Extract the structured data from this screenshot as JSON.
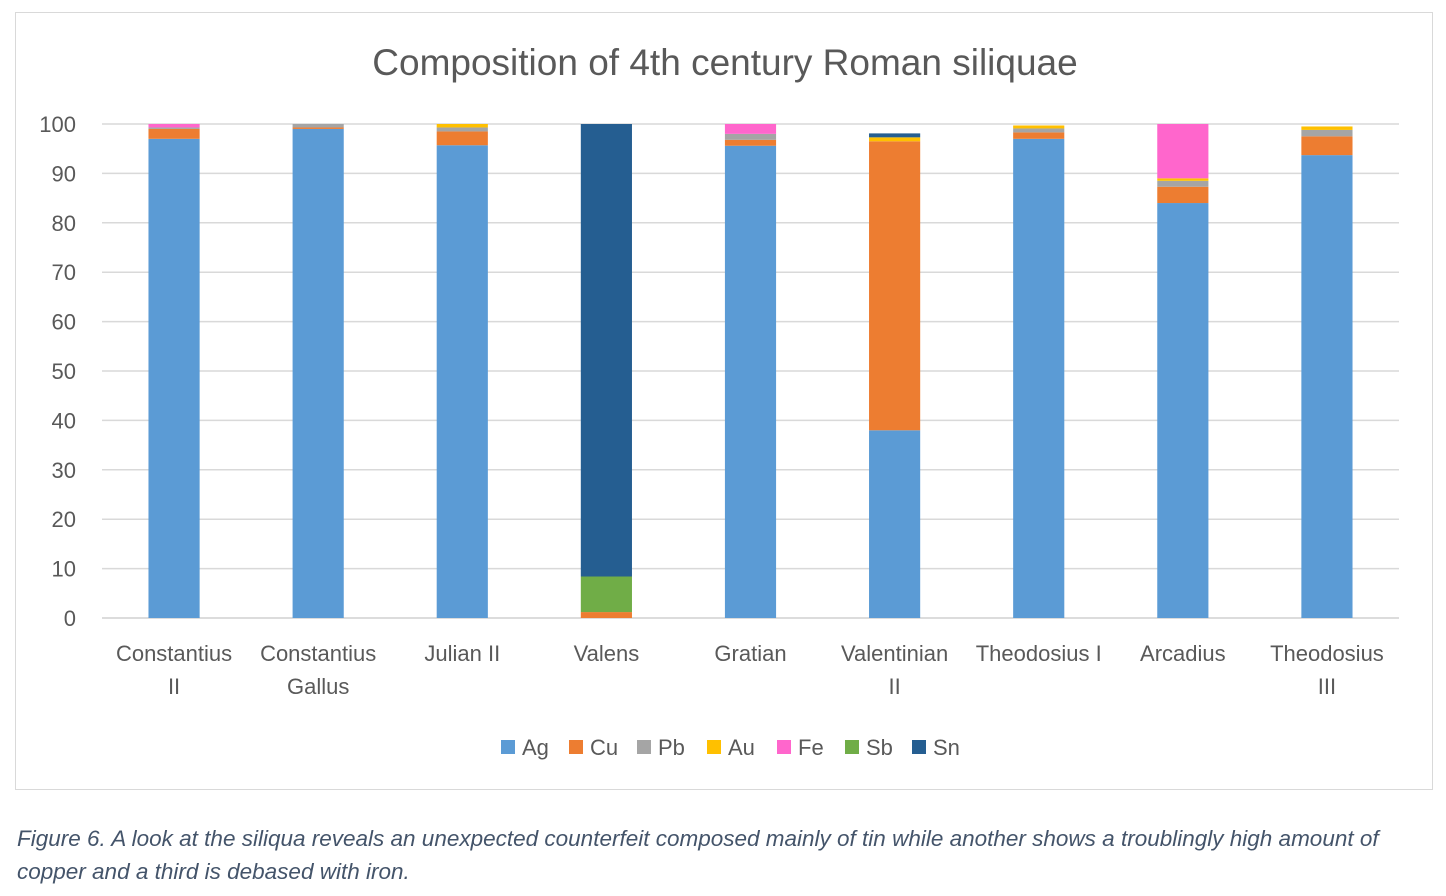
{
  "chart_data": {
    "type": "bar",
    "stacked": true,
    "title": "Composition of 4th century Roman siliquae",
    "xlabel": "",
    "ylabel": "",
    "ylim": [
      0,
      100
    ],
    "yticks": [
      0,
      10,
      20,
      30,
      40,
      50,
      60,
      70,
      80,
      90,
      100
    ],
    "grid": true,
    "legend_position": "bottom",
    "categories": [
      [
        "Constantius",
        "II"
      ],
      [
        "Constantius",
        "Gallus"
      ],
      [
        "Julian II"
      ],
      [
        "Valens"
      ],
      [
        "Gratian"
      ],
      [
        "Valentinian",
        "II"
      ],
      [
        "Theodosius I"
      ],
      [
        "Arcadius"
      ],
      [
        "Theodosius",
        "III"
      ]
    ],
    "series": [
      {
        "name": "Ag",
        "color": "#5b9bd5",
        "values": [
          97,
          99,
          95.7,
          0,
          95.6,
          38,
          97,
          84,
          93.7
        ]
      },
      {
        "name": "Cu",
        "color": "#ed7d31",
        "values": [
          2,
          0.3,
          2.8,
          1.2,
          1.2,
          58.5,
          1.3,
          3.3,
          3.8
        ]
      },
      {
        "name": "Pb",
        "color": "#a5a5a5",
        "values": [
          0.3,
          0.7,
          0.8,
          0,
          1.2,
          0,
          0.8,
          1.2,
          1.3
        ]
      },
      {
        "name": "Au",
        "color": "#ffc000",
        "values": [
          0,
          0,
          0.7,
          0,
          0,
          0.8,
          0.6,
          0.5,
          0.7
        ]
      },
      {
        "name": "Fe",
        "color": "#ff66cc",
        "values": [
          0.7,
          0,
          0,
          0,
          2,
          0,
          0,
          11,
          0
        ]
      },
      {
        "name": "Sb",
        "color": "#70ad47",
        "values": [
          0,
          0,
          0,
          7.2,
          0,
          0,
          0,
          0,
          0
        ]
      },
      {
        "name": "Sn",
        "color": "#255e91",
        "values": [
          0,
          0,
          0,
          91.6,
          0,
          0.8,
          0,
          0,
          0
        ]
      }
    ]
  },
  "caption": "Figure 6. A look at the siliqua reveals an unexpected counterfeit composed mainly of tin while another shows a troublingly high amount of copper and a third is debased with iron."
}
